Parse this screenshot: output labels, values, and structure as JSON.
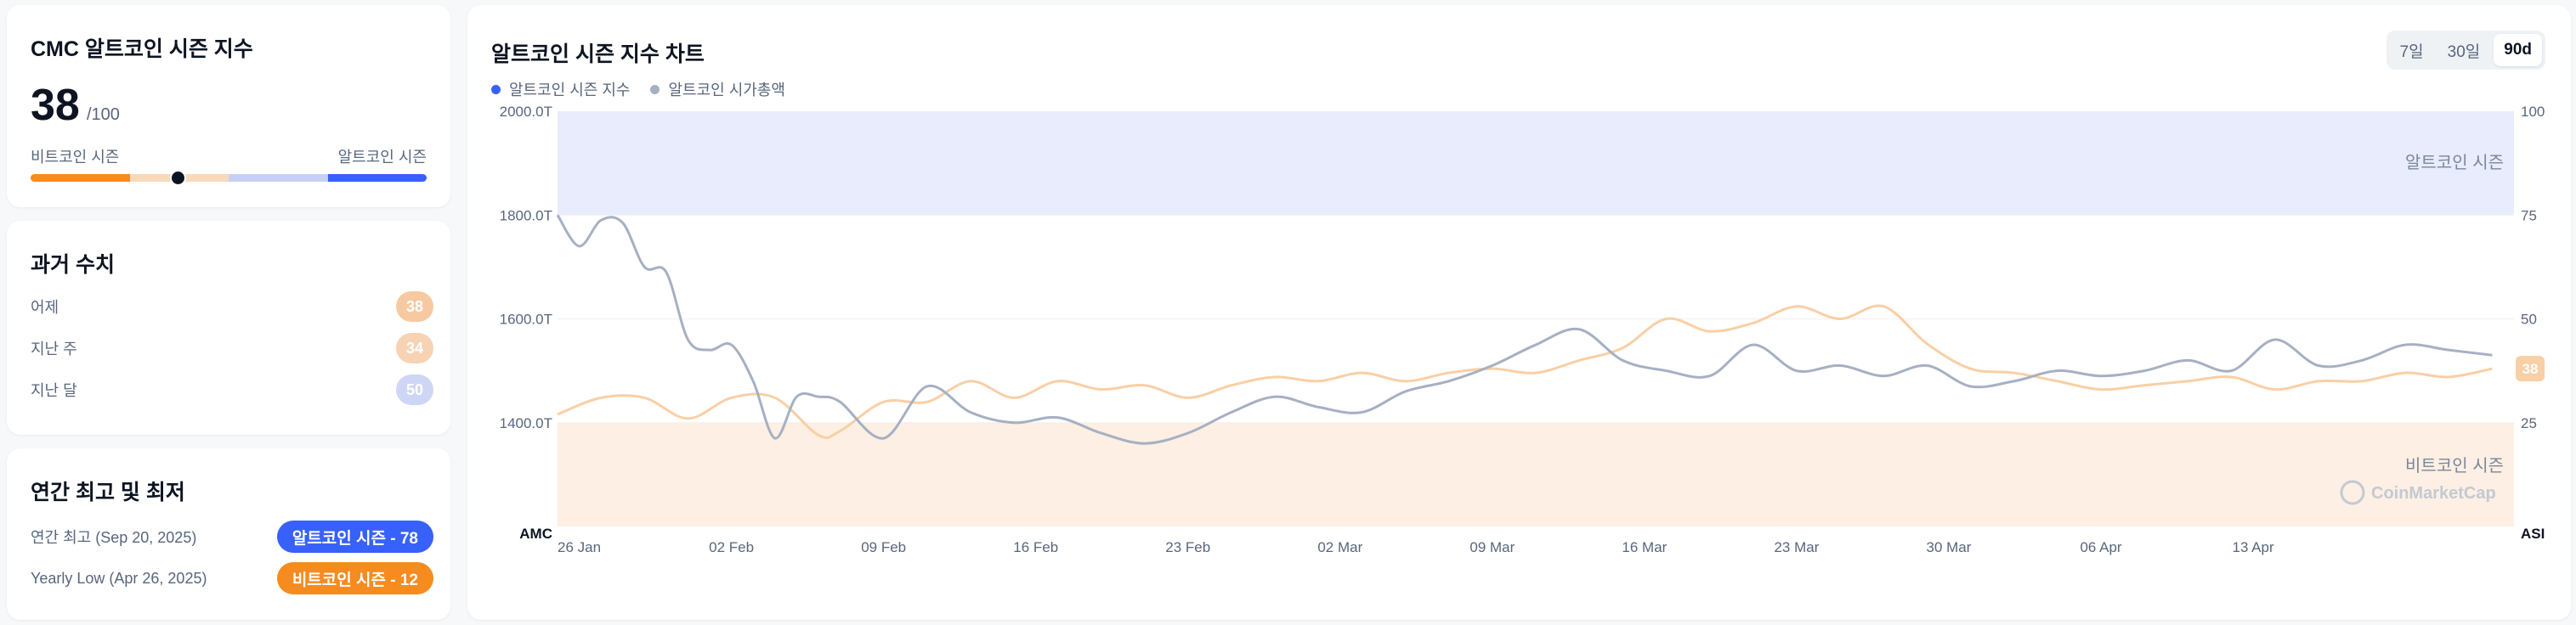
{
  "index_card": {
    "title": "CMC 알트코인 시즌 지수",
    "value": "38",
    "denominator": "/100",
    "left_label": "비트코인 시즌",
    "right_label": "알트코인 시즌",
    "level": 0.38
  },
  "history_card": {
    "title": "과거 수치",
    "rows": [
      {
        "label": "어제",
        "value": "38",
        "color": "#f7c9a0"
      },
      {
        "label": "지난 주",
        "value": "34",
        "color": "#f7d3b4"
      },
      {
        "label": "지난 달",
        "value": "50",
        "color": "#cfd6f5"
      }
    ]
  },
  "yearly_card": {
    "title": "연간 최고 및 최저",
    "rows": [
      {
        "label": "연간 최고 (Sep 20, 2025)",
        "pill": "알트코인 시즌 - 78",
        "color": "#3861fb"
      },
      {
        "label": "Yearly Low (Apr 26, 2025)",
        "pill": "비트코인 시즌 - 12",
        "color": "#f68b1f"
      }
    ]
  },
  "chart_card": {
    "title": "알트코인 시즌 지수 차트",
    "legend": [
      {
        "label": "알트코인 시즌 지수",
        "color": "#3861fb"
      },
      {
        "label": "알트코인 시가총액",
        "color": "#a6b0c3"
      }
    ],
    "tabs": [
      "7일",
      "30일",
      "90d"
    ],
    "active_tab": "90d",
    "zone_top_label": "알트코인 시즌",
    "zone_bottom_label": "비트코인 시즌",
    "watermark": "CoinMarketCap",
    "left_axis_name": "AMC",
    "right_axis_name": "ASI",
    "current_value_badge": "38"
  },
  "chart_data": {
    "type": "line",
    "x_tick_labels": [
      "26 Jan",
      "02 Feb",
      "09 Feb",
      "16 Feb",
      "23 Feb",
      "02 Mar",
      "09 Mar",
      "16 Mar",
      "23 Mar",
      "30 Mar",
      "06 Apr",
      "13 Apr"
    ],
    "x_range_days": [
      0,
      90
    ],
    "x_tick_day_offsets": [
      1,
      8,
      15,
      22,
      29,
      36,
      43,
      50,
      57,
      64,
      71,
      78
    ],
    "left_axis": {
      "name": "AMC",
      "ticks": [
        "1400.0T",
        "1600.0T",
        "1800.0T",
        "2000.0T"
      ],
      "range": [
        1200,
        2000
      ]
    },
    "right_axis": {
      "name": "ASI",
      "ticks": [
        "25",
        "50",
        "75",
        "100"
      ],
      "range": [
        0,
        100
      ]
    },
    "zones": [
      {
        "label": "알트코인 시즌",
        "from": 75,
        "to": 100,
        "color": "#e8ecfd"
      },
      {
        "label": "비트코인 시즌",
        "from": 0,
        "to": 25,
        "color": "#fdefe3"
      }
    ],
    "series": [
      {
        "name": "알트코인 시즌 지수",
        "axis": "right",
        "color": "#f9cfa5",
        "x": [
          0,
          2,
          4,
          6,
          8,
          10,
          12,
          13,
          15,
          17,
          19,
          21,
          23,
          25,
          27,
          29,
          31,
          33,
          35,
          37,
          39,
          41,
          43,
          45,
          47,
          49,
          51,
          53,
          55,
          57,
          59,
          61,
          63,
          65,
          67,
          69,
          71,
          73,
          75,
          77,
          79,
          81,
          83,
          85,
          87,
          89
        ],
        "values": [
          27,
          31,
          31,
          26,
          31,
          31,
          22,
          23,
          30,
          30,
          35,
          31,
          35,
          33,
          34,
          31,
          34,
          36,
          35,
          37,
          35,
          37,
          38,
          37,
          40,
          43,
          50,
          47,
          49,
          53,
          50,
          53,
          44,
          38,
          37,
          35,
          33,
          34,
          35,
          36,
          33,
          35,
          35,
          37,
          36,
          38
        ]
      },
      {
        "name": "알트코인 시가총액",
        "axis": "left",
        "color": "#a6b0c3",
        "x": [
          0,
          1,
          2,
          3,
          4,
          5,
          6,
          7,
          8,
          9,
          10,
          11,
          12,
          13,
          15,
          17,
          19,
          21,
          23,
          25,
          27,
          29,
          31,
          33,
          35,
          37,
          39,
          41,
          43,
          45,
          47,
          49,
          51,
          53,
          55,
          57,
          59,
          61,
          63,
          65,
          67,
          69,
          71,
          73,
          75,
          77,
          79,
          81,
          83,
          85,
          87,
          89
        ],
        "values": [
          1800,
          1740,
          1790,
          1785,
          1700,
          1690,
          1560,
          1540,
          1550,
          1480,
          1370,
          1450,
          1450,
          1440,
          1370,
          1470,
          1420,
          1400,
          1410,
          1380,
          1360,
          1380,
          1420,
          1450,
          1430,
          1420,
          1460,
          1480,
          1510,
          1550,
          1580,
          1520,
          1500,
          1490,
          1550,
          1500,
          1510,
          1490,
          1510,
          1470,
          1480,
          1500,
          1490,
          1500,
          1520,
          1500,
          1560,
          1510,
          1520,
          1550,
          1540,
          1530
        ]
      }
    ]
  }
}
